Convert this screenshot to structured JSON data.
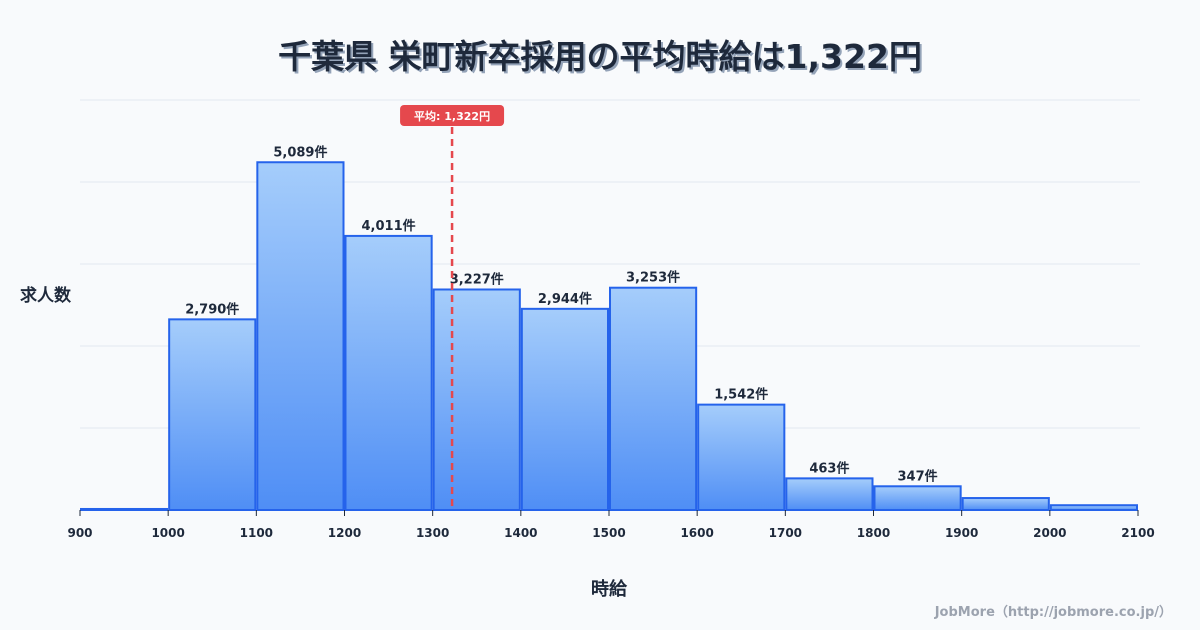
{
  "title": "千葉県 栄町新卒採用の平均時給は1,322円",
  "credit": "JobMore（http://jobmore.co.jp/）",
  "colors": {
    "bar_top": "#a5cdfb",
    "bar_bottom": "#4f8ef5",
    "bar_border": "#2563eb",
    "average_line": "#e5484d",
    "grid": "#e2e8f0",
    "text": "#1e293b"
  },
  "chart_data": {
    "type": "bar",
    "title": "千葉県 栄町新卒採用の平均時給は1,322円",
    "xlabel": "時給",
    "ylabel": "求人数",
    "x_ticks": [
      "900",
      "1000",
      "1100",
      "1200",
      "1300",
      "1400",
      "1500",
      "1600",
      "1700",
      "1800",
      "1900",
      "2000",
      "2100"
    ],
    "bins": [
      {
        "range": [
          900,
          1000
        ],
        "value": 15,
        "label": ""
      },
      {
        "range": [
          1000,
          1100
        ],
        "value": 2790,
        "label": "2,790件"
      },
      {
        "range": [
          1100,
          1200
        ],
        "value": 5089,
        "label": "5,089件"
      },
      {
        "range": [
          1200,
          1300
        ],
        "value": 4011,
        "label": "4,011件"
      },
      {
        "range": [
          1300,
          1400
        ],
        "value": 3227,
        "label": "3,227件"
      },
      {
        "range": [
          1400,
          1500
        ],
        "value": 2944,
        "label": "2,944件"
      },
      {
        "range": [
          1500,
          1600
        ],
        "value": 3253,
        "label": "3,253件"
      },
      {
        "range": [
          1600,
          1700
        ],
        "value": 1542,
        "label": "1,542件"
      },
      {
        "range": [
          1700,
          1800
        ],
        "value": 463,
        "label": "463件"
      },
      {
        "range": [
          1800,
          1900
        ],
        "value": 347,
        "label": "347件"
      },
      {
        "range": [
          1900,
          2000
        ],
        "value": 175,
        "label": ""
      },
      {
        "range": [
          2000,
          2100
        ],
        "value": 70,
        "label": ""
      }
    ],
    "categories": [
      "900-1000",
      "1000-1100",
      "1100-1200",
      "1200-1300",
      "1300-1400",
      "1400-1500",
      "1500-1600",
      "1600-1700",
      "1700-1800",
      "1800-1900",
      "1900-2000",
      "2000-2100"
    ],
    "values": [
      15,
      2790,
      5089,
      4011,
      3227,
      2944,
      3253,
      1542,
      463,
      347,
      175,
      70
    ],
    "xlim": [
      900,
      2100
    ],
    "ylim": [
      0,
      6000
    ],
    "grid": true,
    "average": {
      "value": 1322,
      "label": "平均: 1,322円"
    }
  }
}
